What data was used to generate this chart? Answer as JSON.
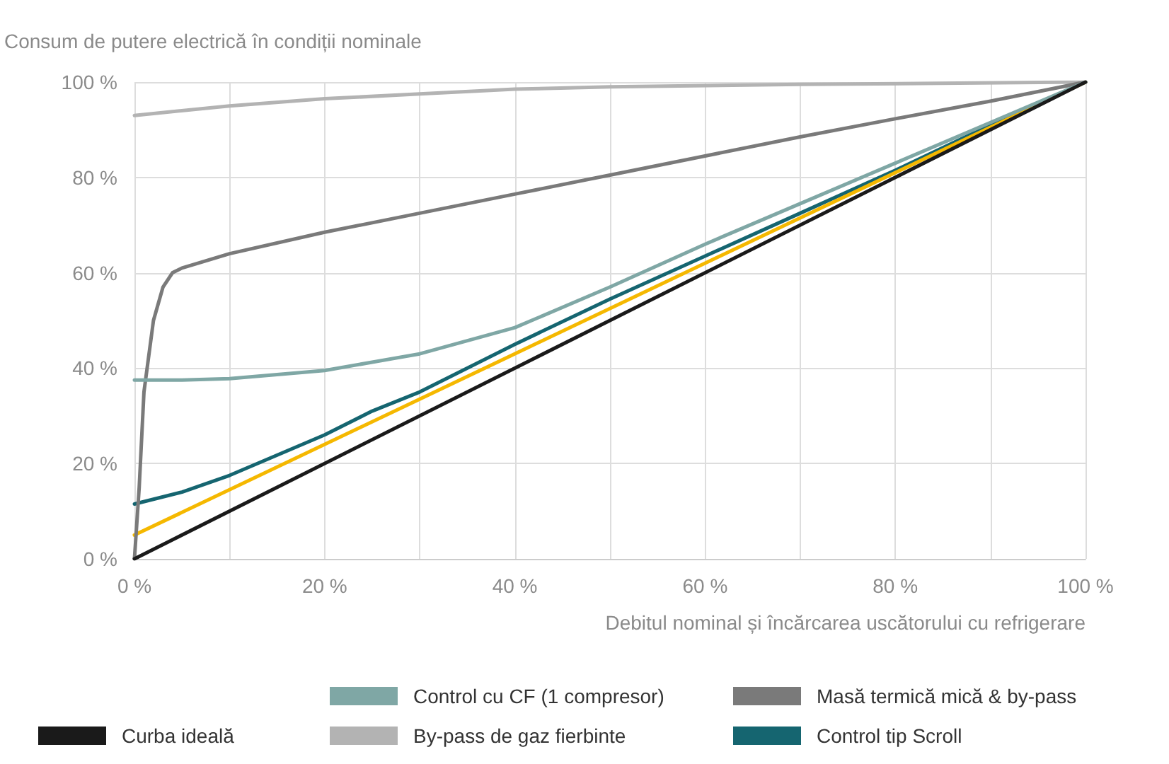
{
  "chart_data": {
    "type": "line",
    "ylabel": "Consum de putere electrică în condiții nominale",
    "xlabel": "Debitul nominal și încărcarea uscătorului cu refrigerare",
    "xlim": [
      0,
      100
    ],
    "ylim": [
      0,
      100
    ],
    "xticks": [
      {
        "value": 0,
        "label": "0 %"
      },
      {
        "value": 10,
        "label": null
      },
      {
        "value": 20,
        "label": "20 %"
      },
      {
        "value": 30,
        "label": null
      },
      {
        "value": 40,
        "label": "40 %"
      },
      {
        "value": 50,
        "label": null
      },
      {
        "value": 60,
        "label": "60 %"
      },
      {
        "value": 70,
        "label": null
      },
      {
        "value": 80,
        "label": "80 %"
      },
      {
        "value": 90,
        "label": null
      },
      {
        "value": 100,
        "label": "100 %"
      }
    ],
    "yticks": [
      {
        "value": 0,
        "label": "0 %"
      },
      {
        "value": 20,
        "label": "20 %"
      },
      {
        "value": 40,
        "label": "40 %"
      },
      {
        "value": 60,
        "label": "60 %"
      },
      {
        "value": 80,
        "label": "80 %"
      },
      {
        "value": 100,
        "label": "100 %"
      }
    ],
    "grid": true,
    "legend": "bottom",
    "marker": "none",
    "line_style": "solid",
    "series": [
      {
        "name": "Curba ideală",
        "color": "#1a1a1a",
        "x": [
          0,
          100
        ],
        "values": [
          0,
          100
        ]
      },
      {
        "name": "Control cu CF (1 compresor)",
        "color": "#7fa7a5",
        "x": [
          0,
          5,
          10,
          20,
          30,
          40,
          50,
          60,
          70,
          80,
          90,
          100
        ],
        "values": [
          37.5,
          37.5,
          37.8,
          39.5,
          43,
          48.5,
          57,
          66,
          74.5,
          83,
          91.5,
          100
        ]
      },
      {
        "name": "Masă termică mică & by-pass",
        "color": "#7a7a7a",
        "x": [
          0,
          0.5,
          1,
          2,
          3,
          4,
          5,
          10,
          20,
          30,
          40,
          50,
          60,
          70,
          80,
          90,
          100
        ],
        "values": [
          0,
          15,
          35,
          50,
          57,
          60,
          61,
          64,
          68.5,
          72.5,
          76.5,
          80.5,
          84.5,
          88.5,
          92.3,
          96,
          100
        ]
      },
      {
        "color": "#f5b800",
        "x": [
          0,
          100
        ],
        "values": [
          5,
          100
        ]
      },
      {
        "name": "By-pass de gaz fierbinte",
        "color": "#b3b3b3",
        "x": [
          0,
          10,
          20,
          30,
          40,
          50,
          70,
          100
        ],
        "values": [
          93,
          95,
          96.5,
          97.5,
          98.5,
          99,
          99.5,
          100
        ]
      },
      {
        "name": "Control tip Scroll",
        "color": "#156570",
        "x": [
          0,
          5,
          10,
          20,
          25,
          30,
          40,
          50,
          60,
          70,
          80,
          90,
          100
        ],
        "values": [
          11.5,
          14,
          17.5,
          26,
          31,
          35,
          45,
          54.5,
          63.5,
          72.5,
          81.5,
          91,
          100
        ]
      }
    ]
  }
}
